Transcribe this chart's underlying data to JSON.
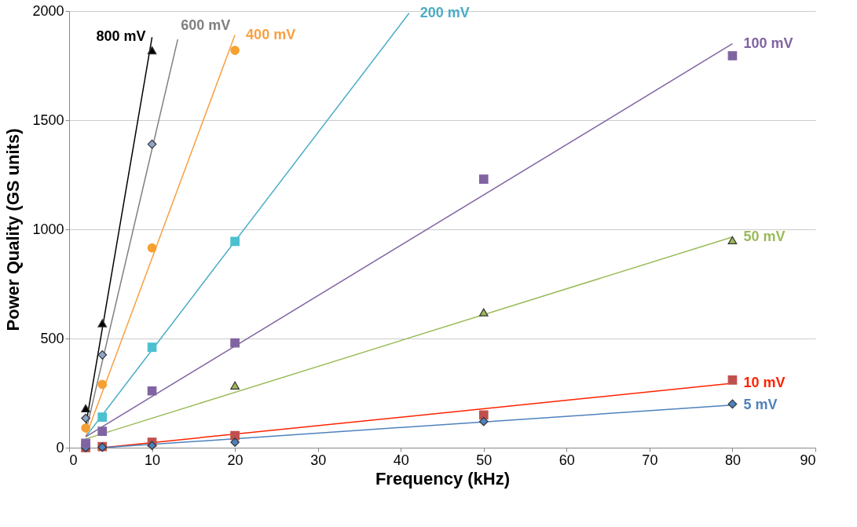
{
  "chart_data": {
    "type": "scatter",
    "xlabel": "Frequency (kHz)",
    "ylabel": "Power Quality  (GS units)",
    "xlim": [
      0,
      90
    ],
    "xticks": [
      0,
      10,
      20,
      30,
      40,
      50,
      60,
      70,
      80,
      90
    ],
    "ylim": [
      0,
      2000
    ],
    "yticks": [
      0,
      500,
      1000,
      1500,
      2000
    ],
    "grid": "y",
    "series": [
      {
        "type": "line",
        "name": "800 mV",
        "color": "#000000",
        "x": [
          2,
          10
        ],
        "values": [
          100,
          1880
        ],
        "marker": "none"
      },
      {
        "type": "line",
        "name": "600 mV",
        "color": "#808080",
        "x": [
          2,
          13.1
        ],
        "values": [
          70,
          1870
        ],
        "marker": "none"
      },
      {
        "type": "line",
        "name": "400 mV",
        "color": "#f9a040",
        "x": [
          2,
          20
        ],
        "values": [
          50,
          1890
        ],
        "marker": "none"
      },
      {
        "type": "line",
        "name": "200 mV",
        "color": "#4bacc6",
        "x": [
          2,
          41
        ],
        "values": [
          50,
          1990
        ],
        "marker": "none"
      },
      {
        "type": "line",
        "name": "100 mV",
        "color": "#8064a2",
        "x": [
          2,
          80
        ],
        "values": [
          50,
          1850
        ],
        "marker": "none"
      },
      {
        "type": "line",
        "name": "50 mV",
        "color": "#9bbb59",
        "x": [
          2,
          80
        ],
        "values": [
          40,
          965
        ],
        "marker": "none"
      },
      {
        "type": "line",
        "name": "10 mV",
        "color": "#ff2200",
        "x": [
          4,
          80
        ],
        "values": [
          0,
          295
        ],
        "marker": "none"
      },
      {
        "type": "line",
        "name": "5 mV",
        "color": "#4f81bd",
        "x": [
          4,
          80
        ],
        "values": [
          0,
          195
        ],
        "marker": "none"
      },
      {
        "color": "#000000",
        "x": [
          2,
          4,
          10
        ],
        "values": [
          180,
          570,
          1820
        ],
        "marker": "triangle"
      },
      {
        "color": "#8ea4c8",
        "x": [
          2,
          4,
          10
        ],
        "values": [
          135,
          425,
          1390
        ],
        "marker": "diamond"
      },
      {
        "color": "#f5a030",
        "x": [
          2,
          4,
          10,
          20
        ],
        "values": [
          90,
          290,
          915,
          1820
        ],
        "marker": "circle"
      },
      {
        "color": "#4bc0cf",
        "x": [
          4,
          10,
          20
        ],
        "values": [
          140,
          460,
          945
        ],
        "marker": "square"
      },
      {
        "color": "#9bbb59",
        "x": [
          20,
          50,
          80
        ],
        "values": [
          285,
          620,
          950
        ],
        "marker": "triangle"
      },
      {
        "color": "#c0504d",
        "x": [
          2,
          4,
          10,
          20,
          50,
          80
        ],
        "values": [
          0,
          5,
          25,
          55,
          150,
          310
        ],
        "marker": "square"
      },
      {
        "color": "#4f81bd",
        "x": [
          2,
          4,
          10,
          20,
          50,
          80
        ],
        "values": [
          0,
          2,
          10,
          25,
          120,
          200
        ],
        "marker": "diamond"
      },
      {
        "color": "#8064a2",
        "x": [
          2,
          4,
          10,
          20,
          50,
          80
        ],
        "values": [
          20,
          75,
          260,
          480,
          1230,
          1795
        ],
        "marker": "square"
      }
    ]
  }
}
